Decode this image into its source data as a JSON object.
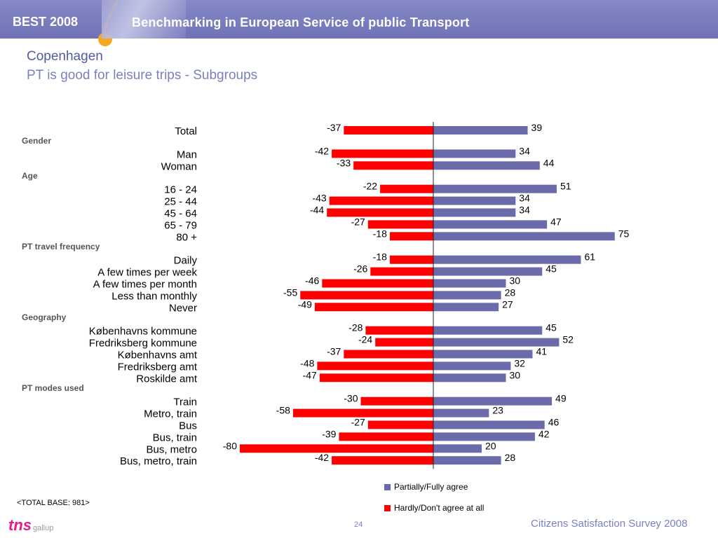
{
  "header": {
    "brand": "BEST 2008",
    "banner": "Benchmarking in European Service of public Transport"
  },
  "title": {
    "city": "Copenhagen",
    "subtitle": "PT is good for leisure trips - Subgroups"
  },
  "colors": {
    "agree": "#6b6bab",
    "disagree": "#ff0000",
    "accent": "#f5a623"
  },
  "chart_data": {
    "type": "bar",
    "orientation": "diverging-horizontal",
    "rows": [
      {
        "kind": "row",
        "label": "Total",
        "negative": -37,
        "positive": 39
      },
      {
        "kind": "group",
        "label": "Gender"
      },
      {
        "kind": "row",
        "label": "Man",
        "negative": -42,
        "positive": 34
      },
      {
        "kind": "row",
        "label": "Woman",
        "negative": -33,
        "positive": 44
      },
      {
        "kind": "group",
        "label": "Age"
      },
      {
        "kind": "row",
        "label": "16 - 24",
        "negative": -22,
        "positive": 51
      },
      {
        "kind": "row",
        "label": "25 - 44",
        "negative": -43,
        "positive": 34
      },
      {
        "kind": "row",
        "label": "45 - 64",
        "negative": -44,
        "positive": 34
      },
      {
        "kind": "row",
        "label": "65 - 79",
        "negative": -27,
        "positive": 47
      },
      {
        "kind": "row",
        "label": "80 +",
        "negative": -18,
        "positive": 75
      },
      {
        "kind": "group",
        "label": "PT travel frequency"
      },
      {
        "kind": "row",
        "label": "Daily",
        "negative": -18,
        "positive": 61
      },
      {
        "kind": "row",
        "label": "A few times per week",
        "negative": -26,
        "positive": 45
      },
      {
        "kind": "row",
        "label": "A few times per month",
        "negative": -46,
        "positive": 30
      },
      {
        "kind": "row",
        "label": "Less than monthly",
        "negative": -55,
        "positive": 28
      },
      {
        "kind": "row",
        "label": "Never",
        "negative": -49,
        "positive": 27
      },
      {
        "kind": "group",
        "label": "Geography"
      },
      {
        "kind": "row",
        "label": "Københavns kommune",
        "negative": -28,
        "positive": 45
      },
      {
        "kind": "row",
        "label": "Fredriksberg kommune",
        "negative": -24,
        "positive": 52
      },
      {
        "kind": "row",
        "label": "Københavns amt",
        "negative": -37,
        "positive": 41
      },
      {
        "kind": "row",
        "label": "Fredriksberg amt",
        "negative": -48,
        "positive": 32
      },
      {
        "kind": "row",
        "label": "Roskilde amt",
        "negative": -47,
        "positive": 30
      },
      {
        "kind": "group",
        "label": "PT modes used"
      },
      {
        "kind": "row",
        "label": "Train",
        "negative": -30,
        "positive": 49
      },
      {
        "kind": "row",
        "label": "Metro, train",
        "negative": -58,
        "positive": 23
      },
      {
        "kind": "row",
        "label": "Bus",
        "negative": -27,
        "positive": 46
      },
      {
        "kind": "row",
        "label": "Bus, train",
        "negative": -39,
        "positive": 42
      },
      {
        "kind": "row",
        "label": "Bus, metro",
        "negative": -80,
        "positive": 20
      },
      {
        "kind": "row",
        "label": "Bus, metro, train",
        "negative": -42,
        "positive": 28
      }
    ],
    "series": [
      {
        "name": "Partially/Fully agree",
        "key": "positive"
      },
      {
        "name": "Hardly/Don't agree at all",
        "key": "negative"
      }
    ],
    "legend_position": "bottom-center"
  },
  "footer": {
    "base": "<TOTAL BASE: 981>",
    "logo_mark": "tns",
    "logo_text": "gallup",
    "page": "24",
    "survey": "Citizens Satisfaction Survey 2008"
  }
}
